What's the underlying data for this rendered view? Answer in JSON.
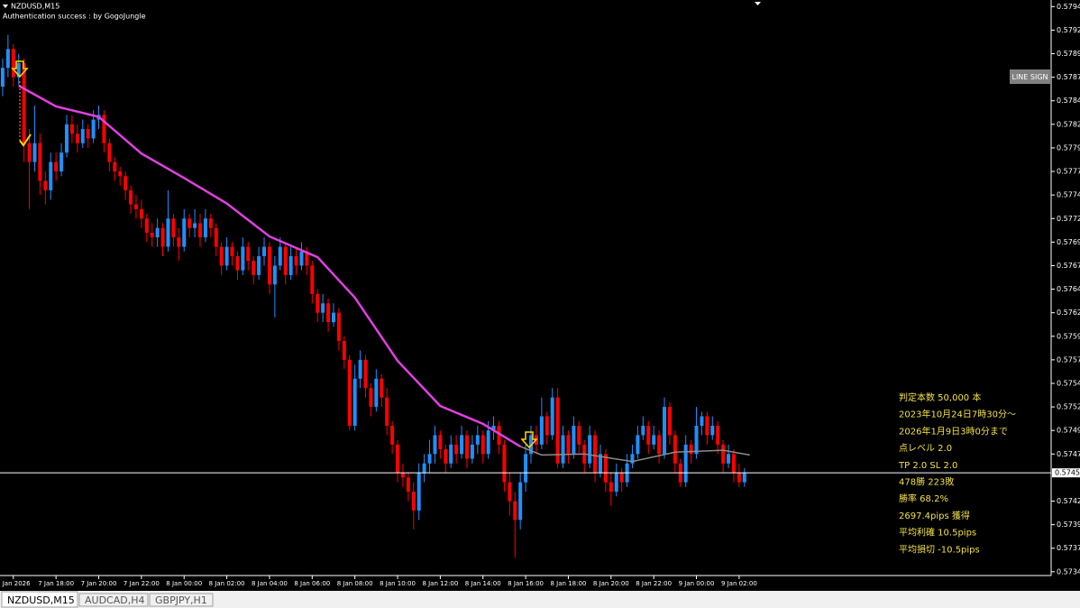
{
  "chart_data": {
    "type": "candlestick",
    "title": "NZDUSD,M15",
    "subtitle": "Authentication success : by GogoJungle",
    "up_color": "#1e90ff",
    "down_color": "#ff0000",
    "xlim": [
      -0.5,
      196.3
    ],
    "ylim": [
      0.57341,
      0.57952
    ],
    "xticks": [
      {
        "value": 2,
        "label": "7 Jan 2026"
      },
      {
        "value": 10,
        "label": "7 Jan 18:00"
      },
      {
        "value": 18,
        "label": "7 Jan 20:00"
      },
      {
        "value": 26,
        "label": "7 Jan 22:00"
      },
      {
        "value": 34,
        "label": "8 Jan 00:00"
      },
      {
        "value": 42,
        "label": "8 Jan 02:00"
      },
      {
        "value": 50,
        "label": "8 Jan 04:00"
      },
      {
        "value": 58,
        "label": "8 Jan 06:00"
      },
      {
        "value": 66,
        "label": "8 Jan 08:00"
      },
      {
        "value": 74,
        "label": "8 Jan 10:00"
      },
      {
        "value": 82,
        "label": "8 Jan 12:00"
      },
      {
        "value": 90,
        "label": "8 Jan 14:00"
      },
      {
        "value": 98,
        "label": "8 Jan 16:00"
      },
      {
        "value": 106,
        "label": "8 Jan 18:00"
      },
      {
        "value": 114,
        "label": "8 Jan 20:00"
      },
      {
        "value": 122,
        "label": "8 Jan 22:00"
      },
      {
        "value": 130,
        "label": "9 Jan 00:00"
      },
      {
        "value": 138,
        "label": "9 Jan 02:00"
      }
    ],
    "yticks": [
      0.57945,
      {
        "value": 0.5792,
        "label": "0.57920"
      },
      0.57895,
      {
        "value": 0.5787,
        "label": "0.57870"
      },
      0.57845,
      {
        "value": 0.5782,
        "label": "0.57820"
      },
      0.57795,
      {
        "value": 0.5777,
        "label": "0.57770"
      },
      0.57745,
      {
        "value": 0.5772,
        "label": "0.57720"
      },
      0.57695,
      {
        "value": 0.5767,
        "label": "0.57670"
      },
      0.57645,
      {
        "value": 0.5762,
        "label": "0.57620"
      },
      0.57595,
      {
        "value": 0.5757,
        "label": "0.57570"
      },
      0.57545,
      {
        "value": 0.5752,
        "label": "0.57520"
      },
      0.57495,
      {
        "value": 0.5747,
        "label": "0.57470"
      },
      {
        "value": 0.5742,
        "label": "0.57420"
      },
      0.57395,
      {
        "value": 0.5737,
        "label": "0.57370"
      },
      0.57345
    ],
    "current_price": {
      "value": 0.5745,
      "label": "0.57450"
    },
    "ma": {
      "color": "#e040e0",
      "x": [
        3,
        10,
        18,
        26,
        34,
        42,
        50,
        59,
        66,
        74,
        82,
        90,
        97
      ],
      "values": [
        0.57861,
        0.57839,
        0.57828,
        0.57789,
        0.57763,
        0.57736,
        0.57701,
        0.57679,
        0.57636,
        0.57569,
        0.57521,
        0.57502,
        0.57478
      ]
    },
    "ma2": {
      "color": "#8c8c8c",
      "x": [
        97,
        101,
        109,
        118,
        126,
        135,
        140
      ],
      "values": [
        0.57478,
        0.57469,
        0.5747,
        0.57462,
        0.57472,
        0.57474,
        0.57469
      ]
    },
    "ohlc": [
      [
        0.5786,
        0.5789,
        0.5785,
        0.5788
      ],
      [
        0.5788,
        0.57915,
        0.5787,
        0.579
      ],
      [
        0.579,
        0.57905,
        0.5786,
        0.5787
      ],
      [
        0.5787,
        0.57895,
        0.57862,
        0.57885
      ],
      [
        0.57885,
        0.5789,
        0.5778,
        0.578
      ],
      [
        0.578,
        0.57815,
        0.5773,
        0.5778
      ],
      [
        0.5778,
        0.5784,
        0.5777,
        0.578
      ],
      [
        0.578,
        0.5781,
        0.57745,
        0.5776
      ],
      [
        0.5776,
        0.5777,
        0.57735,
        0.5775
      ],
      [
        0.5775,
        0.5779,
        0.5774,
        0.5778
      ],
      [
        0.5778,
        0.5779,
        0.5776,
        0.5777
      ],
      [
        0.5777,
        0.578,
        0.57765,
        0.5779
      ],
      [
        0.5779,
        0.5783,
        0.57785,
        0.5782
      ],
      [
        0.5782,
        0.5783,
        0.578,
        0.5781
      ],
      [
        0.5781,
        0.5782,
        0.5779,
        0.578
      ],
      [
        0.578,
        0.57825,
        0.57795,
        0.57815
      ],
      [
        0.57815,
        0.5782,
        0.57795,
        0.57805
      ],
      [
        0.57805,
        0.57835,
        0.578,
        0.57825
      ],
      [
        0.57825,
        0.5784,
        0.57815,
        0.5783
      ],
      [
        0.5783,
        0.57835,
        0.5779,
        0.578
      ],
      [
        0.578,
        0.57805,
        0.5777,
        0.5778
      ],
      [
        0.5778,
        0.57785,
        0.5776,
        0.5777
      ],
      [
        0.5777,
        0.57775,
        0.57755,
        0.57765
      ],
      [
        0.57765,
        0.5777,
        0.5774,
        0.5775
      ],
      [
        0.5775,
        0.57755,
        0.57725,
        0.57735
      ],
      [
        0.57735,
        0.57745,
        0.5772,
        0.5773
      ],
      [
        0.5773,
        0.5774,
        0.5771,
        0.5772
      ],
      [
        0.5772,
        0.57725,
        0.57695,
        0.57705
      ],
      [
        0.57705,
        0.57715,
        0.5769,
        0.577
      ],
      [
        0.577,
        0.5772,
        0.5769,
        0.5771
      ],
      [
        0.5771,
        0.57715,
        0.5768,
        0.5769
      ],
      [
        0.5769,
        0.5775,
        0.57685,
        0.5772
      ],
      [
        0.5772,
        0.57725,
        0.5769,
        0.577
      ],
      [
        0.577,
        0.5771,
        0.57675,
        0.5769
      ],
      [
        0.5769,
        0.5773,
        0.57685,
        0.5772
      ],
      [
        0.5772,
        0.57725,
        0.577,
        0.5771
      ],
      [
        0.5771,
        0.5773,
        0.577,
        0.57715
      ],
      [
        0.57715,
        0.57725,
        0.5769,
        0.577
      ],
      [
        0.577,
        0.5773,
        0.57695,
        0.5772
      ],
      [
        0.5772,
        0.57725,
        0.577,
        0.5771
      ],
      [
        0.5771,
        0.57715,
        0.5768,
        0.5769
      ],
      [
        0.5769,
        0.57695,
        0.5766,
        0.5767
      ],
      [
        0.5767,
        0.577,
        0.57665,
        0.5769
      ],
      [
        0.5769,
        0.57695,
        0.5767,
        0.5768
      ],
      [
        0.5768,
        0.57685,
        0.57655,
        0.57665
      ],
      [
        0.57665,
        0.577,
        0.5766,
        0.5769
      ],
      [
        0.5769,
        0.57695,
        0.57665,
        0.57675
      ],
      [
        0.57675,
        0.5768,
        0.5765,
        0.5766
      ],
      [
        0.5766,
        0.5769,
        0.57655,
        0.5768
      ],
      [
        0.5768,
        0.577,
        0.5767,
        0.5769
      ],
      [
        0.5769,
        0.57695,
        0.5764,
        0.5765
      ],
      [
        0.5765,
        0.5768,
        0.57615,
        0.5767
      ],
      [
        0.5767,
        0.577,
        0.57665,
        0.5769
      ],
      [
        0.5769,
        0.57695,
        0.5765,
        0.5766
      ],
      [
        0.5766,
        0.5769,
        0.57655,
        0.5768
      ],
      [
        0.5768,
        0.5769,
        0.5766,
        0.5767
      ],
      [
        0.5767,
        0.57695,
        0.57665,
        0.57685
      ],
      [
        0.57685,
        0.5769,
        0.5766,
        0.5767
      ],
      [
        0.5767,
        0.57675,
        0.5763,
        0.5764
      ],
      [
        0.5764,
        0.57645,
        0.5761,
        0.5762
      ],
      [
        0.5762,
        0.5764,
        0.5761,
        0.5763
      ],
      [
        0.5763,
        0.57635,
        0.576,
        0.5761
      ],
      [
        0.5761,
        0.5763,
        0.57605,
        0.5762
      ],
      [
        0.5762,
        0.57625,
        0.5758,
        0.5759
      ],
      [
        0.5759,
        0.57595,
        0.5756,
        0.5757
      ],
      [
        0.5757,
        0.57575,
        0.57495,
        0.575
      ],
      [
        0.575,
        0.57565,
        0.57495,
        0.5755
      ],
      [
        0.5755,
        0.5758,
        0.5754,
        0.5757
      ],
      [
        0.5757,
        0.57575,
        0.5753,
        0.5754
      ],
      [
        0.5754,
        0.57545,
        0.5751,
        0.5752
      ],
      [
        0.5752,
        0.5756,
        0.57515,
        0.5755
      ],
      [
        0.5755,
        0.57555,
        0.5752,
        0.5753
      ],
      [
        0.5753,
        0.5754,
        0.5749,
        0.575
      ],
      [
        0.575,
        0.57505,
        0.5747,
        0.5748
      ],
      [
        0.5748,
        0.57485,
        0.5744,
        0.5745
      ],
      [
        0.5745,
        0.5746,
        0.57435,
        0.57445
      ],
      [
        0.57445,
        0.5745,
        0.5742,
        0.5743
      ],
      [
        0.5743,
        0.5744,
        0.5739,
        0.5741
      ],
      [
        0.5741,
        0.5746,
        0.574,
        0.5745
      ],
      [
        0.5745,
        0.5747,
        0.5744,
        0.5746
      ],
      [
        0.5746,
        0.57485,
        0.5745,
        0.5747
      ],
      [
        0.5747,
        0.575,
        0.5746,
        0.5749
      ],
      [
        0.5749,
        0.57495,
        0.57465,
        0.57475
      ],
      [
        0.57475,
        0.5748,
        0.5745,
        0.5746
      ],
      [
        0.5746,
        0.5749,
        0.57455,
        0.5748
      ],
      [
        0.5748,
        0.5749,
        0.5746,
        0.5747
      ],
      [
        0.5747,
        0.575,
        0.57465,
        0.5749
      ],
      [
        0.5749,
        0.57495,
        0.57455,
        0.57465
      ],
      [
        0.57465,
        0.5749,
        0.5746,
        0.5748
      ],
      [
        0.5748,
        0.575,
        0.5747,
        0.5749
      ],
      [
        0.5749,
        0.57495,
        0.5746,
        0.5747
      ],
      [
        0.5747,
        0.57505,
        0.57465,
        0.57495
      ],
      [
        0.57495,
        0.5751,
        0.57485,
        0.575
      ],
      [
        0.575,
        0.57505,
        0.5747,
        0.5748
      ],
      [
        0.5748,
        0.57485,
        0.5743,
        0.5744
      ],
      [
        0.5744,
        0.5745,
        0.57405,
        0.5742
      ],
      [
        0.5742,
        0.5743,
        0.5736,
        0.574
      ],
      [
        0.574,
        0.5745,
        0.5739,
        0.5744
      ],
      [
        0.5744,
        0.5748,
        0.5743,
        0.5747
      ],
      [
        0.5747,
        0.575,
        0.5746,
        0.5749
      ],
      [
        0.5749,
        0.575,
        0.5747,
        0.5748
      ],
      [
        0.5748,
        0.5753,
        0.57475,
        0.5751
      ],
      [
        0.5751,
        0.57515,
        0.5748,
        0.5749
      ],
      [
        0.5749,
        0.5754,
        0.57485,
        0.5753
      ],
      [
        0.5753,
        0.5754,
        0.57455,
        0.5746
      ],
      [
        0.5746,
        0.575,
        0.57455,
        0.5749
      ],
      [
        0.5749,
        0.57495,
        0.5746,
        0.5747
      ],
      [
        0.5747,
        0.5751,
        0.57465,
        0.575
      ],
      [
        0.575,
        0.57505,
        0.5747,
        0.5748
      ],
      [
        0.5748,
        0.57485,
        0.5745,
        0.5746
      ],
      [
        0.5746,
        0.575,
        0.57455,
        0.5749
      ],
      [
        0.5749,
        0.57495,
        0.5744,
        0.5745
      ],
      [
        0.5745,
        0.5748,
        0.57445,
        0.5747
      ],
      [
        0.5747,
        0.57475,
        0.5743,
        0.5744
      ],
      [
        0.5744,
        0.5745,
        0.57415,
        0.5743
      ],
      [
        0.5743,
        0.5746,
        0.57425,
        0.5745
      ],
      [
        0.5745,
        0.57455,
        0.5743,
        0.5744
      ],
      [
        0.5744,
        0.5747,
        0.57435,
        0.5746
      ],
      [
        0.5746,
        0.5748,
        0.57455,
        0.5747
      ],
      [
        0.5747,
        0.575,
        0.57465,
        0.5749
      ],
      [
        0.5749,
        0.5751,
        0.57485,
        0.575
      ],
      [
        0.575,
        0.57505,
        0.5747,
        0.5748
      ],
      [
        0.5748,
        0.575,
        0.57475,
        0.5749
      ],
      [
        0.5749,
        0.57495,
        0.5746,
        0.5747
      ],
      [
        0.5747,
        0.5753,
        0.57465,
        0.5752
      ],
      [
        0.5752,
        0.57525,
        0.5748,
        0.5749
      ],
      [
        0.5749,
        0.57495,
        0.5745,
        0.5746
      ],
      [
        0.5746,
        0.57465,
        0.57435,
        0.5744
      ],
      [
        0.5744,
        0.5749,
        0.57435,
        0.5748
      ],
      [
        0.5748,
        0.57485,
        0.5746,
        0.5747
      ],
      [
        0.5747,
        0.5752,
        0.57465,
        0.575
      ],
      [
        0.575,
        0.57515,
        0.5749,
        0.5751
      ],
      [
        0.5751,
        0.57515,
        0.5748,
        0.5749
      ],
      [
        0.5749,
        0.5751,
        0.57485,
        0.575
      ],
      [
        0.575,
        0.57505,
        0.5747,
        0.5748
      ],
      [
        0.5748,
        0.57485,
        0.5745,
        0.5746
      ],
      [
        0.5746,
        0.5748,
        0.57455,
        0.5747
      ],
      [
        0.5747,
        0.57475,
        0.5744,
        0.5745
      ],
      [
        0.5745,
        0.5746,
        0.57435,
        0.5744
      ],
      [
        0.5744,
        0.57455,
        0.57435,
        0.5745
      ]
    ]
  },
  "button": "LINE SIGN",
  "stats": [
    "判定本数 50,000 本",
    "2023年10月24日7時30分～",
    "2026年1月9日3時0分まで",
    "点レベル 2.0",
    "TP 2.0 SL 2.0",
    "478勝 223敗",
    "勝率 68.2%",
    "2697.4pips 獲得",
    "平均利確 10.5pips",
    "平均損切 -10.5pips"
  ],
  "tabs": [
    "NZDUSD,M15",
    "AUDCAD,H4",
    "GBPJPY,H1"
  ]
}
